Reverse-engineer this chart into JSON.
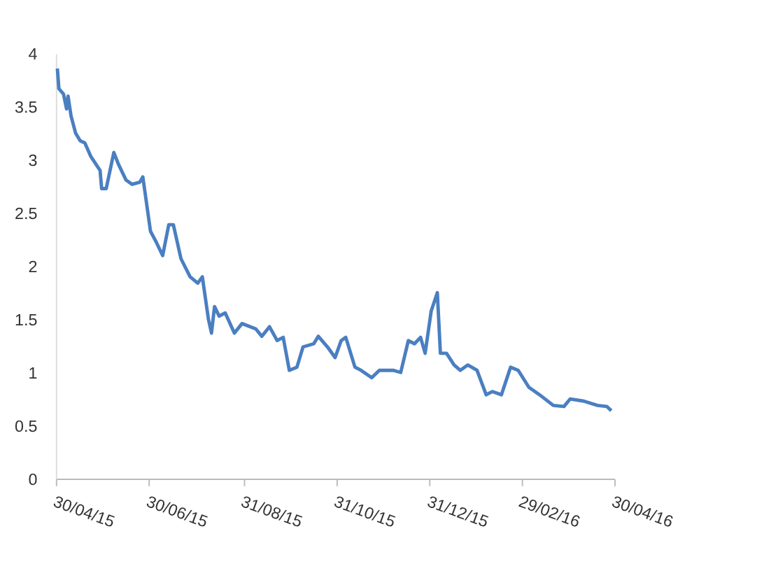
{
  "chart_data": {
    "type": "line",
    "x": [
      "2015-05-01",
      "2015-05-02",
      "2015-05-05",
      "2015-05-07",
      "2015-05-08",
      "2015-05-10",
      "2015-05-13",
      "2015-05-16",
      "2015-05-19",
      "2015-05-23",
      "2015-05-29",
      "2015-05-30",
      "2015-06-02",
      "2015-06-07",
      "2015-06-10",
      "2015-06-15",
      "2015-06-19",
      "2015-06-24",
      "2015-06-26",
      "2015-07-01",
      "2015-07-05",
      "2015-07-09",
      "2015-07-13",
      "2015-07-16",
      "2015-07-21",
      "2015-07-27",
      "2015-08-01",
      "2015-08-04",
      "2015-08-08",
      "2015-08-10",
      "2015-08-12",
      "2015-08-15",
      "2015-08-19",
      "2015-08-25",
      "2015-08-30",
      "2015-09-08",
      "2015-09-12",
      "2015-09-17",
      "2015-09-22",
      "2015-09-26",
      "2015-09-30",
      "2015-10-05",
      "2015-10-09",
      "2015-10-16",
      "2015-10-19",
      "2015-10-25",
      "2015-10-30",
      "2015-11-03",
      "2015-11-06",
      "2015-11-12",
      "2015-11-16",
      "2015-11-23",
      "2015-11-28",
      "2015-12-07",
      "2015-12-12",
      "2015-12-17",
      "2015-12-21",
      "2015-12-25",
      "2015-12-28",
      "2016-01-01",
      "2016-01-05",
      "2016-01-07",
      "2016-01-11",
      "2016-01-16",
      "2016-01-20",
      "2016-01-25",
      "2016-01-31",
      "2016-02-06",
      "2016-02-10",
      "2016-02-16",
      "2016-02-22",
      "2016-02-27",
      "2016-03-05",
      "2016-03-12",
      "2016-03-21",
      "2016-03-28",
      "2016-04-01",
      "2016-04-10",
      "2016-04-19",
      "2016-04-25",
      "2016-04-28"
    ],
    "series": [
      {
        "color": "#4a7fc1",
        "values": [
          3.86,
          3.67,
          3.62,
          3.48,
          3.6,
          3.41,
          3.25,
          3.18,
          3.16,
          3.03,
          2.9,
          2.73,
          2.73,
          3.07,
          2.96,
          2.81,
          2.77,
          2.79,
          2.84,
          2.33,
          2.22,
          2.1,
          2.39,
          2.39,
          2.07,
          1.9,
          1.84,
          1.9,
          1.5,
          1.37,
          1.62,
          1.53,
          1.56,
          1.37,
          1.46,
          1.41,
          1.34,
          1.43,
          1.3,
          1.33,
          1.02,
          1.05,
          1.24,
          1.27,
          1.34,
          1.24,
          1.14,
          1.3,
          1.33,
          1.05,
          1.02,
          0.95,
          1.02,
          1.02,
          1.0,
          1.3,
          1.27,
          1.33,
          1.18,
          1.58,
          1.75,
          1.18,
          1.18,
          1.07,
          1.02,
          1.07,
          1.02,
          0.79,
          0.82,
          0.79,
          1.05,
          1.02,
          0.86,
          0.79,
          0.69,
          0.68,
          0.75,
          0.73,
          0.69,
          0.68,
          0.64
        ]
      }
    ],
    "xlim": [
      "2015-04-30",
      "2016-04-30"
    ],
    "xticks": [
      {
        "value": "2015-04-30",
        "label": "30/04/15"
      },
      {
        "value": "2015-06-30",
        "label": "30/06/15"
      },
      {
        "value": "2015-08-31",
        "label": "31/08/15"
      },
      {
        "value": "2015-10-31",
        "label": "31/10/15"
      },
      {
        "value": "2015-12-31",
        "label": "31/12/15"
      },
      {
        "value": "2016-02-29",
        "label": "29/02/16"
      },
      {
        "value": "2016-04-30",
        "label": "30/04/16"
      }
    ],
    "ylim": [
      0,
      4
    ],
    "yticks": [
      0,
      0.5,
      1,
      1.5,
      2,
      2.5,
      3,
      3.5,
      4
    ],
    "grid": false,
    "marker": "none",
    "line_style": "solid"
  }
}
